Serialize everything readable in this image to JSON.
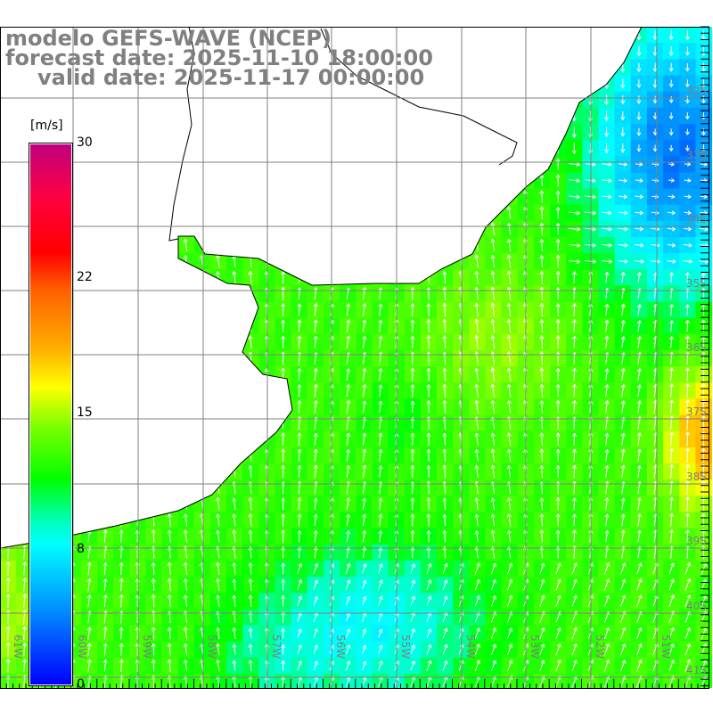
{
  "header": {
    "model": "modelo GEFS-WAVE (NCEP)",
    "forecast": "forecast date: 2025-11-10 18:00:00",
    "valid": "valid date: 2025-11-17 00:00:00"
  },
  "colorbar": {
    "unit": "[m/s]",
    "ticks": [
      "30",
      "22",
      "15",
      "8",
      "0"
    ],
    "range": [
      0,
      30
    ]
  },
  "latitude_labels": [
    "32S",
    "33S",
    "34S",
    "35S",
    "36S",
    "37S",
    "38S",
    "39S",
    "40S",
    "41S"
  ],
  "longitude_labels": [
    "61W",
    "60W",
    "59W",
    "58W",
    "57W",
    "56W",
    "55W",
    "54W",
    "53W",
    "52W",
    "51W"
  ],
  "colors": {
    "land": "#ffffff",
    "grid": "#808080",
    "label": "#808080",
    "arrow": "#ffffff"
  }
}
